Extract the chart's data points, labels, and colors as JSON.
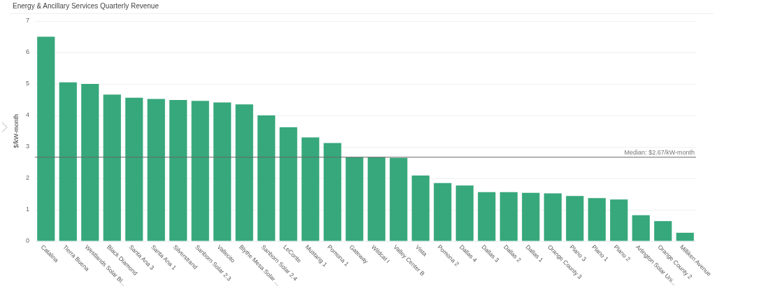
{
  "chart_data": {
    "type": "bar",
    "title": "Energy & Ancillary Services Quarterly Revenue",
    "ylabel": "$/kW-month",
    "categories": [
      "Catalina",
      "Tierra Buena",
      "Westlands Solar Bl...",
      "Black Diamond",
      "Santa Ana 3",
      "Santa Ana 1",
      "Silverstrand",
      "Sanborn Solar 2.3",
      "Vallecito",
      "Blythe Mesa Solar ...",
      "Sanborn Solar 2.4",
      "LeConte",
      "Mustang 1",
      "Pomona 1",
      "Gateway",
      "Wildcat I",
      "Valley Center B",
      "Vista",
      "Pomona 2",
      "Dallas 4",
      "Dallas 3",
      "Dallas 2",
      "Dallas 1",
      "Orange County 3",
      "Plano 3",
      "Plano 1",
      "Plano 2",
      "Arlington Solar Uni...",
      "Orange County 2",
      "Milliken Avenue"
    ],
    "values": [
      6.5,
      5.05,
      5.0,
      4.66,
      4.56,
      4.52,
      4.49,
      4.46,
      4.41,
      4.35,
      4.0,
      3.62,
      3.3,
      3.12,
      2.67,
      2.67,
      2.65,
      2.09,
      1.85,
      1.77,
      1.56,
      1.56,
      1.54,
      1.52,
      1.44,
      1.37,
      1.33,
      0.83,
      0.64,
      0.27
    ],
    "color": "#37a87c",
    "ylim": [
      0,
      7
    ],
    "yticks": [
      0,
      1,
      2,
      3,
      4,
      5,
      6,
      7
    ],
    "grid": "y",
    "ref_lines": [
      {
        "axis": "y",
        "value": 2.67,
        "label": "Median: $2.67/kW-month",
        "color": "#666666"
      }
    ]
  }
}
